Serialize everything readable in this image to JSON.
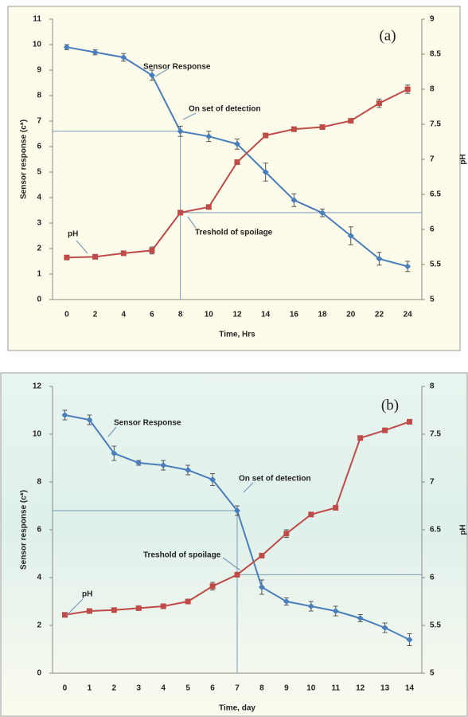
{
  "chart_data": [
    {
      "type": "line",
      "panel_label": "(a)",
      "x_label": "Time, Hrs",
      "y_label": "Sensor response (c*)",
      "y2_label": "pH",
      "categories": [
        "0",
        "2",
        "4",
        "6",
        "8",
        "10",
        "12",
        "14",
        "16",
        "18",
        "20",
        "22",
        "24"
      ],
      "ylim": [
        0,
        11
      ],
      "yticks": [
        0,
        1,
        2,
        3,
        4,
        5,
        6,
        7,
        8,
        9,
        10,
        11
      ],
      "y2lim": [
        5,
        9
      ],
      "y2ticks": [
        5,
        5.5,
        6,
        6.5,
        7,
        7.5,
        8,
        8.5,
        9
      ],
      "series": [
        {
          "name": "Sensor Response",
          "color": "#4a7ebb",
          "values": [
            9.9,
            9.7,
            9.5,
            8.8,
            6.6,
            6.4,
            6.1,
            5.0,
            3.9,
            3.4,
            2.5,
            1.6,
            1.3
          ],
          "errors": [
            0.1,
            0.1,
            0.15,
            0.2,
            0.2,
            0.2,
            0.2,
            0.35,
            0.25,
            0.15,
            0.35,
            0.25,
            0.2
          ]
        },
        {
          "name": "pH",
          "color": "#be4b48",
          "axis": "y2",
          "values": [
            5.6,
            5.61,
            5.66,
            5.7,
            6.24,
            6.32,
            6.96,
            7.34,
            7.43,
            7.46,
            7.55,
            7.8,
            8.0
          ],
          "errors": [
            0.02,
            0.02,
            0.02,
            0.05,
            0.03,
            0.03,
            0.03,
            0.03,
            0.02,
            0.02,
            0.03,
            0.06,
            0.06
          ]
        }
      ],
      "annotations": [
        "On set of detection",
        "Treshold of spoilage"
      ]
    },
    {
      "type": "line",
      "panel_label": "(b)",
      "x_label": "Time, day",
      "y_label": "Sensor response (c*)",
      "y2_label": "pH",
      "categories": [
        "0",
        "1",
        "2",
        "3",
        "4",
        "5",
        "6",
        "7",
        "8",
        "9",
        "10",
        "11",
        "12",
        "13",
        "14"
      ],
      "ylim": [
        0,
        12
      ],
      "yticks": [
        0,
        2,
        4,
        6,
        8,
        10,
        12
      ],
      "y2lim": [
        5,
        8
      ],
      "y2ticks": [
        5,
        5.5,
        6,
        6.5,
        7,
        7.5,
        8
      ],
      "series": [
        {
          "name": "Sensor Response",
          "color": "#4a7ebb",
          "values": [
            10.8,
            10.6,
            9.2,
            8.8,
            8.7,
            8.5,
            8.1,
            6.8,
            3.6,
            3.0,
            2.8,
            2.6,
            2.3,
            1.9,
            1.4
          ],
          "errors": [
            0.2,
            0.2,
            0.3,
            0.1,
            0.2,
            0.2,
            0.25,
            0.2,
            0.3,
            0.15,
            0.2,
            0.2,
            0.15,
            0.2,
            0.25
          ]
        },
        {
          "name": "pH",
          "color": "#be4b48",
          "axis": "y2",
          "values": [
            5.61,
            5.65,
            5.66,
            5.68,
            5.7,
            5.75,
            5.91,
            6.03,
            6.23,
            6.46,
            6.66,
            6.73,
            7.46,
            7.54,
            7.63
          ],
          "errors": [
            0.01,
            0.01,
            0.01,
            0.01,
            0.01,
            0.02,
            0.04,
            0.02,
            0.02,
            0.04,
            0.02,
            0.01,
            0.02,
            0.02,
            0.01
          ]
        }
      ],
      "annotations": [
        "On set of detection",
        "Treshold of spoilage"
      ]
    }
  ]
}
